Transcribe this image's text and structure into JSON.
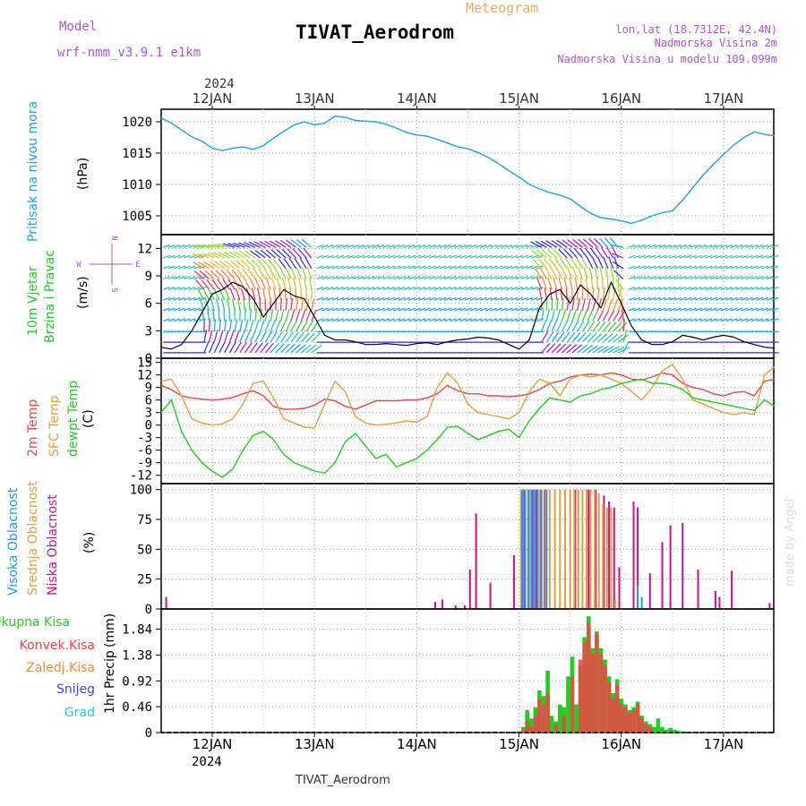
{
  "header": {
    "model_label": "Model",
    "model_name": "wrf-nmm_v3.9.1 e1km",
    "subtitle": "Meteogram",
    "title": "TIVAT_Aerodrom",
    "coords": "lon,lat (18.7312E, 42.4N)",
    "elevation": "Nadmorska Visina 2m",
    "model_elevation": "Nadmorska Visina u modelu 109.099m",
    "year_top": "2024",
    "year_bottom": "2024",
    "footer_station": "TIVAT_Aerodrom",
    "watermark": "made by Angel"
  },
  "colors": {
    "pressure": "#1ea0e8",
    "temp2m": "#ee4444",
    "sfc_temp": "#e0a040",
    "dewpt": "#22cc22",
    "wind_speed": "#000000",
    "gust": "#ee3333",
    "cloud_high": "#2299ee",
    "cloud_mid": "#e0a040",
    "cloud_low": "#cc1188",
    "precip_total": "#22cc22",
    "precip_conv": "#ee4444",
    "precip_ice": "#ff8833",
    "precip_snow": "#4444ee",
    "precip_grad": "#22cccc",
    "model_text": "#aa55dd",
    "subtitle_text": "#e8b060"
  },
  "chart_data": [
    {
      "type": "line",
      "panel": "pressure",
      "ylabel_left": "Pritisak na nivou mora",
      "ylabel_unit": "(hPa)",
      "x_unit": "days from 12JAN 00UTC",
      "x_range": [
        -0.5,
        5.5
      ],
      "ylim": [
        1002,
        1022
      ],
      "yticks": [
        1005,
        1010,
        1015,
        1020
      ],
      "series": [
        {
          "x": [
            -0.5,
            -0.4,
            -0.3,
            -0.2,
            -0.1,
            0,
            0.1,
            0.2,
            0.3,
            0.4,
            0.5,
            0.6,
            0.7,
            0.8,
            0.9,
            1.0,
            1.1,
            1.2,
            1.3,
            1.4,
            1.5,
            1.6,
            1.7,
            1.8,
            1.9,
            2.0,
            2.1,
            2.2,
            2.3,
            2.4,
            2.5,
            2.6,
            2.7,
            2.8,
            2.9,
            3.0,
            3.1,
            3.2,
            3.3,
            3.4,
            3.5,
            3.6,
            3.7,
            3.8,
            3.9,
            4.0,
            4.1,
            4.2,
            4.3,
            4.4,
            4.5,
            4.6,
            4.7,
            4.8,
            4.9,
            5.0,
            5.1,
            5.2,
            5.3,
            5.4,
            5.5
          ],
          "values": [
            1020.6,
            1019.8,
            1018.7,
            1017.6,
            1016.9,
            1015.8,
            1015.4,
            1015.8,
            1016.0,
            1015.6,
            1016.2,
            1017.4,
            1018.5,
            1019.5,
            1020.0,
            1019.5,
            1019.8,
            1020.9,
            1020.7,
            1020.2,
            1020.1,
            1020.0,
            1019.6,
            1019.0,
            1018.3,
            1017.9,
            1017.7,
            1017.2,
            1016.6,
            1016.0,
            1015.7,
            1015.1,
            1014.3,
            1013.3,
            1012.2,
            1011.2,
            1010.0,
            1009.3,
            1008.7,
            1008.3,
            1007.7,
            1006.5,
            1005.4,
            1004.7,
            1004.5,
            1004.2,
            1003.8,
            1004.3,
            1005.0,
            1005.5,
            1005.8,
            1007.5,
            1009.5,
            1011.5,
            1013.2,
            1014.8,
            1016.3,
            1017.5,
            1018.4,
            1018.0,
            1017.7
          ]
        }
      ]
    },
    {
      "type": "line",
      "panel": "wind",
      "ylabel_left_1": "10m Vjetar",
      "ylabel_left_2": "Brzina i Pravac",
      "ylabel_unit": "(m/s)",
      "compass": [
        "N",
        "W",
        "E",
        "S"
      ],
      "x_unit": "days from 12JAN 00UTC",
      "ylim": [
        0,
        13.5
      ],
      "yticks": [
        0,
        3,
        6,
        9,
        12
      ],
      "series": [
        {
          "name": "speed",
          "x": [
            -0.5,
            -0.4,
            -0.3,
            -0.2,
            -0.1,
            0,
            0.1,
            0.2,
            0.3,
            0.4,
            0.5,
            0.6,
            0.7,
            0.8,
            0.9,
            1.0,
            1.1,
            1.2,
            1.3,
            1.4,
            1.5,
            1.6,
            1.7,
            1.8,
            1.9,
            2.0,
            2.1,
            2.2,
            2.3,
            2.4,
            2.5,
            2.6,
            2.7,
            2.8,
            2.9,
            3.0,
            3.1,
            3.2,
            3.3,
            3.4,
            3.5,
            3.6,
            3.7,
            3.8,
            3.9,
            4.0,
            4.1,
            4.2,
            4.3,
            4.4,
            4.5,
            4.6,
            4.7,
            4.8,
            4.9,
            5.0,
            5.1,
            5.2,
            5.3,
            5.4,
            5.5
          ],
          "values": [
            1.2,
            1.0,
            1.5,
            3.0,
            5.0,
            7.0,
            7.5,
            8.3,
            7.8,
            6.5,
            4.5,
            6.0,
            7.5,
            6.8,
            6.5,
            4.5,
            2.5,
            2.0,
            2.0,
            1.8,
            1.5,
            1.5,
            1.6,
            1.5,
            1.4,
            1.6,
            1.7,
            1.5,
            1.8,
            2.0,
            2.1,
            2.3,
            2.2,
            2.0,
            1.5,
            1.0,
            2.0,
            5.5,
            7.0,
            7.5,
            6.0,
            8.0,
            7.0,
            5.5,
            8.3,
            6.0,
            3.5,
            2.0,
            1.5,
            1.5,
            1.8,
            2.5,
            2.3,
            2.0,
            2.3,
            2.5,
            2.3,
            1.8,
            1.5,
            1.2,
            1.1
          ]
        }
      ]
    },
    {
      "type": "line",
      "panel": "temperature",
      "ylabel_left_1": "2m Temp",
      "ylabel_left_2": "SFC Temp",
      "ylabel_left_3": "dewpt Temp",
      "ylabel_unit": "(C)",
      "x_unit": "days from 12JAN 00UTC",
      "ylim": [
        -14,
        16
      ],
      "yticks": [
        -12,
        -9,
        -6,
        -3,
        0,
        3,
        6,
        9,
        12,
        15
      ],
      "series": [
        {
          "name": "2m Temp",
          "x": [
            -0.5,
            -0.4,
            -0.3,
            -0.2,
            -0.1,
            0,
            0.1,
            0.2,
            0.3,
            0.4,
            0.5,
            0.6,
            0.7,
            0.8,
            0.9,
            1.0,
            1.1,
            1.2,
            1.3,
            1.4,
            1.5,
            1.6,
            1.7,
            1.8,
            1.9,
            2.0,
            2.1,
            2.2,
            2.3,
            2.4,
            2.5,
            2.6,
            2.7,
            2.8,
            2.9,
            3.0,
            3.1,
            3.2,
            3.3,
            3.4,
            3.5,
            3.6,
            3.7,
            3.8,
            3.9,
            4.0,
            4.1,
            4.2,
            4.3,
            4.4,
            4.5,
            4.6,
            4.7,
            4.8,
            4.9,
            5.0,
            5.1,
            5.2,
            5.3,
            5.4,
            5.5
          ],
          "values": [
            9.5,
            8.5,
            7.0,
            6.5,
            6.2,
            6.0,
            6.2,
            6.6,
            7.5,
            8.2,
            7.0,
            4.5,
            3.8,
            3.8,
            4.0,
            4.8,
            6.2,
            5.8,
            4.5,
            3.8,
            4.8,
            5.8,
            5.8,
            5.8,
            6.0,
            6.0,
            6.5,
            7.5,
            9.5,
            8.2,
            7.5,
            7.5,
            7.0,
            7.0,
            6.8,
            7.0,
            7.5,
            8.5,
            10.0,
            10.5,
            11.5,
            12.0,
            12.2,
            12.0,
            12.5,
            12.0,
            11.0,
            10.8,
            11.5,
            12.5,
            12.0,
            10.0,
            9.0,
            8.5,
            7.5,
            7.0,
            7.8,
            8.0,
            7.0,
            10.5,
            11.0
          ]
        },
        {
          "name": "SFC Temp",
          "x": [
            -0.5,
            -0.4,
            -0.3,
            -0.2,
            -0.1,
            0,
            0.1,
            0.2,
            0.3,
            0.4,
            0.5,
            0.6,
            0.7,
            0.8,
            0.9,
            1.0,
            1.1,
            1.2,
            1.3,
            1.4,
            1.5,
            1.6,
            1.7,
            1.8,
            1.9,
            2.0,
            2.1,
            2.2,
            2.3,
            2.4,
            2.5,
            2.6,
            2.7,
            2.8,
            2.9,
            3.0,
            3.1,
            3.2,
            3.3,
            3.4,
            3.5,
            3.6,
            3.7,
            3.8,
            3.9,
            4.0,
            4.1,
            4.2,
            4.3,
            4.4,
            4.5,
            4.6,
            4.7,
            4.8,
            4.9,
            5.0,
            5.1,
            5.2,
            5.3,
            5.4,
            5.5
          ],
          "values": [
            10.5,
            11.0,
            7.0,
            1.5,
            0.5,
            0.0,
            0.3,
            1.5,
            5.0,
            10.0,
            10.5,
            6.5,
            1.5,
            0.5,
            -0.5,
            -0.7,
            5.0,
            10.5,
            8.0,
            2.0,
            0.5,
            0.0,
            0.2,
            0.5,
            1.0,
            0.7,
            2.0,
            9.0,
            12.5,
            10.0,
            5.0,
            3.0,
            2.5,
            2.0,
            1.5,
            3.0,
            8.0,
            11.0,
            10.0,
            7.0,
            11.0,
            12.0,
            11.5,
            12.0,
            11.0,
            10.0,
            8.0,
            6.0,
            9.0,
            13.0,
            14.5,
            11.0,
            6.0,
            5.0,
            4.0,
            3.0,
            2.5,
            3.0,
            2.5,
            12.0,
            14.0
          ]
        },
        {
          "name": "dewpt Temp",
          "x": [
            -0.5,
            -0.4,
            -0.3,
            -0.2,
            -0.1,
            0,
            0.1,
            0.2,
            0.3,
            0.4,
            0.5,
            0.6,
            0.7,
            0.8,
            0.9,
            1.0,
            1.1,
            1.2,
            1.3,
            1.4,
            1.5,
            1.6,
            1.7,
            1.8,
            1.9,
            2.0,
            2.1,
            2.2,
            2.3,
            2.4,
            2.5,
            2.6,
            2.7,
            2.8,
            2.9,
            3.0,
            3.1,
            3.2,
            3.3,
            3.4,
            3.5,
            3.6,
            3.7,
            3.8,
            3.9,
            4.0,
            4.1,
            4.2,
            4.3,
            4.4,
            4.5,
            4.6,
            4.7,
            4.8,
            4.9,
            5.0,
            5.1,
            5.2,
            5.3,
            5.4,
            5.5
          ],
          "values": [
            3.0,
            6.0,
            -1.5,
            -6.0,
            -9.0,
            -11.0,
            -12.5,
            -10.5,
            -6.0,
            -2.5,
            -1.5,
            -3.5,
            -7.0,
            -9.0,
            -10.0,
            -11.0,
            -11.5,
            -9.0,
            -4.0,
            -2.0,
            -5.0,
            -8.0,
            -7.0,
            -10.0,
            -9.0,
            -8.0,
            -6.0,
            -3.5,
            -0.5,
            -0.3,
            -2.0,
            -3.5,
            -2.5,
            -1.5,
            -1.0,
            -3.0,
            1.0,
            4.0,
            6.5,
            6.0,
            5.5,
            7.0,
            7.5,
            8.5,
            9.0,
            10.0,
            10.5,
            11.0,
            10.0,
            10.0,
            9.5,
            8.5,
            6.5,
            6.0,
            5.5,
            5.0,
            4.5,
            4.0,
            3.5,
            6.0,
            4.5
          ]
        }
      ]
    },
    {
      "type": "bar",
      "panel": "clouds",
      "ylabel_left_1": "Visoka Oblacnost",
      "ylabel_left_2": "Srednja Oblacnost",
      "ylabel_left_3": "Niska Oblacnost",
      "ylabel_unit": "(%)",
      "x_unit": "days from 12JAN 00UTC",
      "ylim": [
        0,
        105
      ],
      "yticks": [
        0,
        25,
        50,
        75,
        100
      ],
      "series": [
        {
          "name": "Niska Oblacnost",
          "x": [
            -0.45,
            2.18,
            2.25,
            2.38,
            2.47,
            2.52,
            2.58,
            2.72,
            2.95,
            3.03,
            3.05,
            3.09,
            3.13,
            3.17,
            3.21,
            3.25,
            3.55,
            3.68,
            3.75,
            3.83,
            3.88,
            3.93,
            3.98,
            4.12,
            4.16,
            4.28,
            4.4,
            4.48,
            4.6,
            4.75,
            4.92,
            4.96,
            5.08,
            5.45
          ],
          "values": [
            10,
            6,
            8,
            3,
            3,
            33,
            80,
            22,
            45,
            10,
            100,
            100,
            100,
            100,
            100,
            100,
            100,
            100,
            100,
            95,
            90,
            85,
            35,
            90,
            85,
            30,
            56,
            70,
            72,
            33,
            15,
            10,
            32,
            5
          ]
        },
        {
          "name": "Srednja Oblacnost",
          "x": [
            3.02,
            3.1,
            3.15,
            3.2,
            3.26,
            3.3,
            3.35,
            3.4,
            3.45,
            3.5,
            3.54,
            3.58,
            3.62,
            3.66,
            3.7,
            3.74,
            3.78,
            3.82,
            3.86,
            3.9,
            3.94
          ],
          "values": [
            100,
            100,
            100,
            100,
            100,
            100,
            100,
            100,
            100,
            100,
            100,
            100,
            100,
            100,
            100,
            100,
            97,
            88,
            85,
            85,
            8
          ]
        },
        {
          "name": "Visoka Oblacnost",
          "x": [
            3.03,
            3.06,
            3.09,
            3.12,
            3.15,
            3.18,
            3.22,
            3.27,
            4.16,
            4.2
          ],
          "values": [
            100,
            100,
            100,
            100,
            100,
            100,
            100,
            100,
            20,
            10
          ]
        }
      ]
    },
    {
      "type": "bar",
      "panel": "precip",
      "ylabel_left": "1hr Precip",
      "ylabel_unit": "(mm)",
      "legend": [
        "Ukupna Kisa",
        "Konvek.Kisa",
        "Zaledj.Kisa",
        "Snijeg",
        "Grad"
      ],
      "x_unit": "days from 12JAN 00UTC",
      "xticks": [
        "12JAN",
        "13JAN",
        "14JAN",
        "15JAN",
        "16JAN",
        "17JAN"
      ],
      "ylim": [
        0,
        2.2
      ],
      "yticks": [
        0,
        0.46,
        0.92,
        1.38,
        1.84
      ],
      "series": [
        {
          "name": "Ukupna Kisa",
          "x": [
            3.04,
            3.08,
            3.12,
            3.16,
            3.2,
            3.24,
            3.28,
            3.32,
            3.36,
            3.4,
            3.44,
            3.48,
            3.52,
            3.56,
            3.6,
            3.64,
            3.68,
            3.72,
            3.76,
            3.8,
            3.84,
            3.88,
            3.92,
            3.96,
            4.0,
            4.04,
            4.08,
            4.12,
            4.16,
            4.2,
            4.24,
            4.28,
            4.32,
            4.36,
            4.4,
            4.44,
            4.48,
            4.52,
            4.56,
            4.6
          ],
          "values": [
            0.1,
            0.4,
            0.25,
            0.45,
            0.75,
            0.65,
            1.1,
            0.3,
            0.2,
            0.5,
            0.45,
            1.0,
            1.35,
            0.5,
            1.2,
            1.7,
            2.07,
            1.5,
            1.8,
            1.5,
            1.3,
            1.0,
            0.7,
            0.95,
            0.6,
            0.5,
            0.4,
            0.45,
            0.55,
            0.3,
            0.2,
            0.15,
            0.1,
            0.25,
            0.1,
            0.05,
            0.08,
            0.05,
            0.03,
            0.02
          ]
        },
        {
          "name": "Konvek.Kisa",
          "x": [
            3.04,
            3.08,
            3.12,
            3.16,
            3.2,
            3.24,
            3.28,
            3.36,
            3.44,
            3.52,
            3.6,
            3.64,
            3.68,
            3.72,
            3.76,
            3.8,
            3.84,
            3.88,
            3.92,
            3.96,
            4.0,
            4.04,
            4.08,
            4.12,
            4.16,
            4.2,
            4.24,
            4.28
          ],
          "values": [
            0.05,
            0.2,
            0.1,
            0.3,
            0.6,
            0.5,
            0.7,
            0.15,
            0.3,
            1.0,
            1.3,
            1.6,
            1.95,
            1.4,
            1.75,
            1.4,
            1.2,
            0.9,
            0.6,
            0.85,
            0.5,
            0.45,
            0.35,
            0.4,
            0.5,
            0.25,
            0.15,
            0.1
          ]
        }
      ]
    }
  ]
}
